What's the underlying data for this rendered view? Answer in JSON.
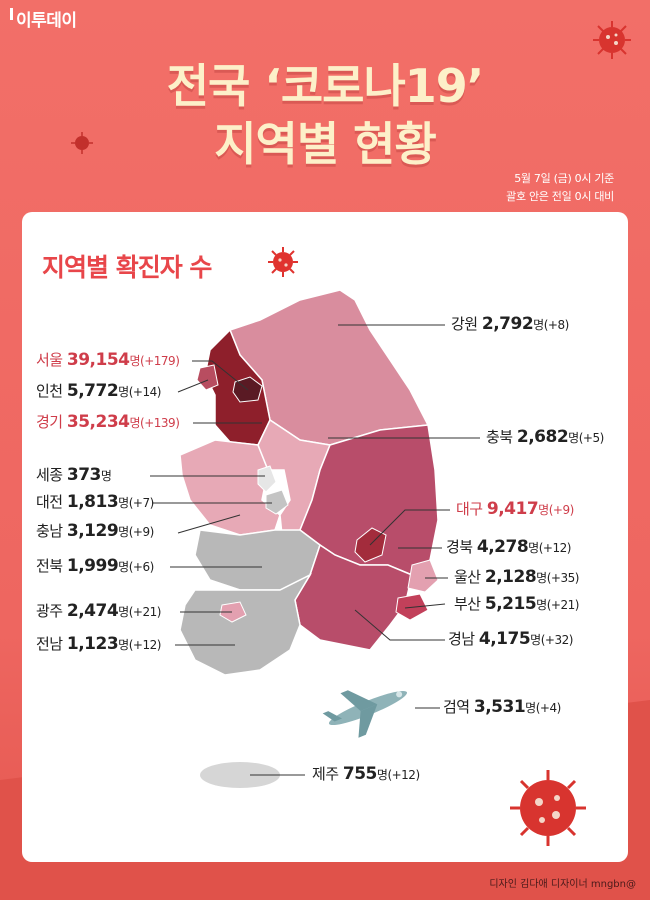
{
  "header": {
    "logo": "이투데이",
    "title_line1": "전국 ‘코로나19’",
    "title_line2": "지역별 현황",
    "date_line1": "5월 7일 (금) 0시 기준",
    "date_line2": "괄호 안은 전일 0시 대비"
  },
  "subtitle": "지역별 확진자 수",
  "unit": "명",
  "regions": [
    {
      "id": "gangwon",
      "name": "강원",
      "value": "2,792",
      "delta": "(+8)",
      "color": "#d98d9e"
    },
    {
      "id": "seoul",
      "name": "서울",
      "value": "39,154",
      "delta": "(+179)",
      "color": "#5a1a24",
      "highlight": true
    },
    {
      "id": "incheon",
      "name": "인천",
      "value": "5,772",
      "delta": "(+14)",
      "color": "#b84d60"
    },
    {
      "id": "gyeonggi",
      "name": "경기",
      "value": "35,234",
      "delta": "(+139)",
      "color": "#8e1f2b",
      "highlight": true
    },
    {
      "id": "chungbuk",
      "name": "충북",
      "value": "2,682",
      "delta": "(+5)",
      "color": "#e7a9b6"
    },
    {
      "id": "sejong",
      "name": "세종",
      "value": "373",
      "delta": "",
      "color": "#e6e6e6"
    },
    {
      "id": "daejeon",
      "name": "대전",
      "value": "1,813",
      "delta": "(+7)",
      "color": "#c4c4c4"
    },
    {
      "id": "chungnam",
      "name": "충남",
      "value": "3,129",
      "delta": "(+9)",
      "color": "#e7a9b6"
    },
    {
      "id": "daegu",
      "name": "대구",
      "value": "9,417",
      "delta": "(+9)",
      "color": "#a32c3c",
      "highlight": true
    },
    {
      "id": "jeonbuk",
      "name": "전북",
      "value": "1,999",
      "delta": "(+6)",
      "color": "#b8b8b8"
    },
    {
      "id": "gyeongbuk",
      "name": "경북",
      "value": "4,278",
      "delta": "(+12)",
      "color": "#b84d6a"
    },
    {
      "id": "ulsan",
      "name": "울산",
      "value": "2,128",
      "delta": "(+35)",
      "color": "#e3a0b0"
    },
    {
      "id": "gwangju",
      "name": "광주",
      "value": "2,474",
      "delta": "(+21)",
      "color": "#e3a0b0"
    },
    {
      "id": "busan",
      "name": "부산",
      "value": "5,215",
      "delta": "(+21)",
      "color": "#c2405a"
    },
    {
      "id": "jeonnam",
      "name": "전남",
      "value": "1,123",
      "delta": "(+12)",
      "color": "#b8b8b8"
    },
    {
      "id": "gyeongnam",
      "name": "경남",
      "value": "4,175",
      "delta": "(+32)",
      "color": "#b84d6a"
    },
    {
      "id": "quarantine",
      "name": "검역",
      "value": "3,531",
      "delta": "(+4)",
      "color": "#8fb3b8"
    },
    {
      "id": "jeju",
      "name": "제주",
      "value": "755",
      "delta": "(+12)",
      "color": "#d6d6d6"
    }
  ],
  "credit": "디자인 김다애 디자이너 mngbn@"
}
